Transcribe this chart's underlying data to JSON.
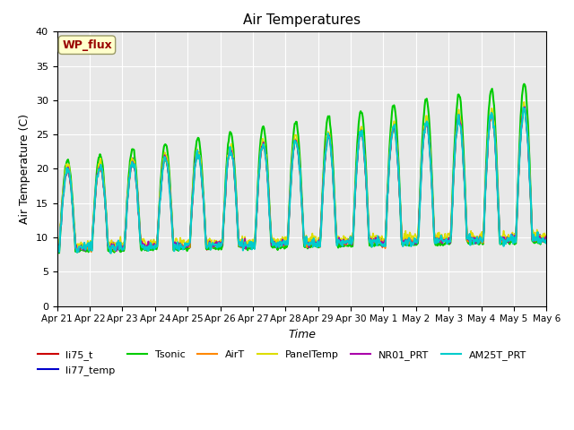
{
  "title": "Air Temperatures",
  "xlabel": "Time",
  "ylabel": "Air Temperature (C)",
  "annotation": "WP_flux",
  "ylim": [
    0,
    40
  ],
  "yticks": [
    0,
    5,
    10,
    15,
    20,
    25,
    30,
    35,
    40
  ],
  "x_labels": [
    "Apr 21",
    "Apr 22",
    "Apr 23",
    "Apr 24",
    "Apr 25",
    "Apr 26",
    "Apr 27",
    "Apr 28",
    "Apr 29",
    "Apr 30",
    "May 1",
    "May 2",
    "May 3",
    "May 4",
    "May 5",
    "May 6"
  ],
  "series": {
    "li75_t": {
      "color": "#cc0000",
      "lw": 1.2
    },
    "li77_temp": {
      "color": "#0000cc",
      "lw": 1.2
    },
    "Tsonic": {
      "color": "#00cc00",
      "lw": 1.5
    },
    "AirT": {
      "color": "#ff8800",
      "lw": 1.2
    },
    "PanelTemp": {
      "color": "#dddd00",
      "lw": 1.2
    },
    "NR01_PRT": {
      "color": "#aa00aa",
      "lw": 1.2
    },
    "AM25T_PRT": {
      "color": "#00cccc",
      "lw": 1.5
    }
  },
  "bg_color": "#e8e8e8",
  "plot_bg": "#e8e8e8"
}
